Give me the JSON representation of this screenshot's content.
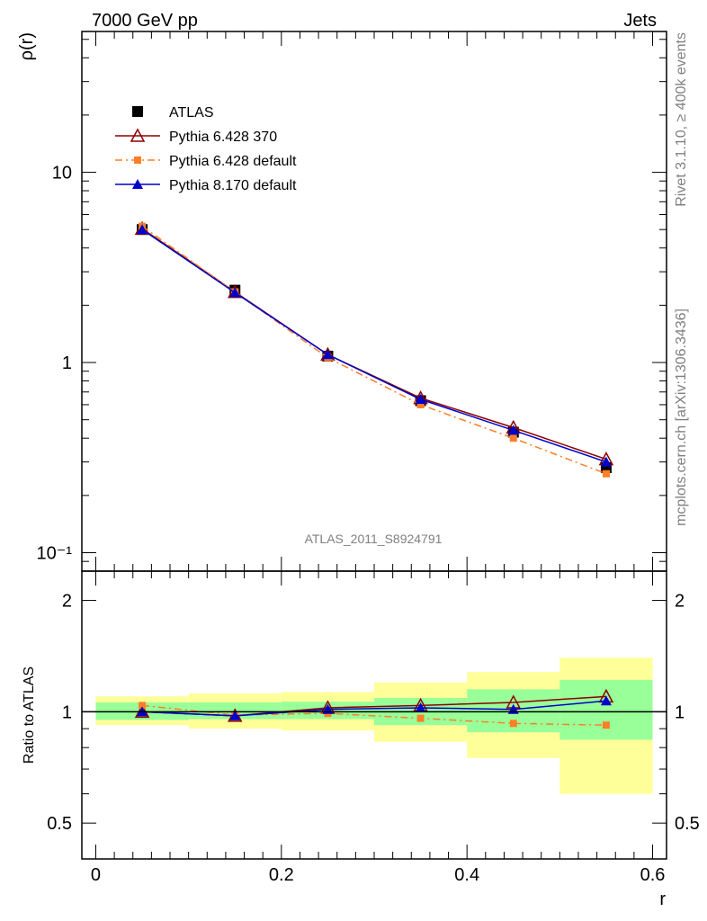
{
  "header": {
    "energy_label": "7000 GeV pp",
    "process_label": "Jets",
    "analysis_id": "ATLAS_2011_S8924791"
  },
  "side_labels": {
    "rivet": "Rivet 3.1.10, ≥ 400k events",
    "source": "mcplots.cern.ch [arXiv:1306.3436]"
  },
  "colors": {
    "data": "#000000",
    "pythia6_370": "#8b0000",
    "pythia6_default": "#ff7f27",
    "pythia8_default": "#0000cc",
    "band_inner": "#99ff99",
    "band_outer": "#ffff99"
  },
  "chart_data": [
    {
      "type": "line",
      "panel": "main",
      "ylabel": "ρ(r)",
      "y_scale": "log",
      "ylim": [
        0.08,
        55
      ],
      "xlim": [
        -0.015,
        0.615
      ],
      "y_ticks": [
        {
          "value": 0.1,
          "label": "10⁻¹"
        },
        {
          "value": 1,
          "label": "1"
        },
        {
          "value": 10,
          "label": "10"
        }
      ],
      "x": [
        0.05,
        0.15,
        0.25,
        0.35,
        0.45,
        0.55
      ],
      "series": [
        {
          "name": "ATLAS",
          "marker": "square",
          "values": [
            5.0,
            2.4,
            1.08,
            0.63,
            0.43,
            0.28
          ]
        },
        {
          "name": "Pythia 6.428 370",
          "marker": "open-triangle",
          "line": "solid",
          "values": [
            5.05,
            2.35,
            1.1,
            0.65,
            0.455,
            0.31
          ]
        },
        {
          "name": "Pythia 6.428 default",
          "marker": "small-square",
          "line": "dashdot",
          "values": [
            5.2,
            2.35,
            1.06,
            0.6,
            0.4,
            0.26
          ]
        },
        {
          "name": "Pythia 8.170 default",
          "marker": "filled-triangle",
          "line": "solid",
          "values": [
            5.0,
            2.33,
            1.1,
            0.64,
            0.44,
            0.3
          ]
        }
      ],
      "legend_position": "top-left"
    },
    {
      "type": "line",
      "panel": "ratio",
      "ylabel": "Ratio to ATLAS",
      "xlabel": "r",
      "y_scale": "log",
      "ylim": [
        0.4,
        2.4
      ],
      "xlim": [
        -0.015,
        0.615
      ],
      "y_ticks": [
        {
          "value": 0.5,
          "label": "0.5"
        },
        {
          "value": 1,
          "label": "1"
        },
        {
          "value": 2,
          "label": "2"
        }
      ],
      "x_ticks": [
        {
          "value": 0,
          "label": "0"
        },
        {
          "value": 0.2,
          "label": "0.2"
        },
        {
          "value": 0.4,
          "label": "0.4"
        },
        {
          "value": 0.6,
          "label": "0.6"
        }
      ],
      "bands": [
        {
          "x0": 0.0,
          "x1": 0.1,
          "inner": [
            0.95,
            1.06
          ],
          "outer": [
            0.92,
            1.1
          ]
        },
        {
          "x0": 0.1,
          "x1": 0.2,
          "inner": [
            0.955,
            1.06
          ],
          "outer": [
            0.9,
            1.12
          ]
        },
        {
          "x0": 0.2,
          "x1": 0.3,
          "inner": [
            0.955,
            1.065
          ],
          "outer": [
            0.89,
            1.13
          ]
        },
        {
          "x0": 0.3,
          "x1": 0.4,
          "inner": [
            0.92,
            1.09
          ],
          "outer": [
            0.83,
            1.2
          ]
        },
        {
          "x0": 0.4,
          "x1": 0.5,
          "inner": [
            0.88,
            1.15
          ],
          "outer": [
            0.75,
            1.28
          ]
        },
        {
          "x0": 0.5,
          "x1": 0.6,
          "inner": [
            0.84,
            1.22
          ],
          "outer": [
            0.6,
            1.4
          ]
        }
      ],
      "x": [
        0.05,
        0.15,
        0.25,
        0.35,
        0.45,
        0.55
      ],
      "series": [
        {
          "name": "Pythia 6.428 370",
          "values": [
            1.0,
            0.975,
            1.025,
            1.04,
            1.06,
            1.1
          ]
        },
        {
          "name": "Pythia 6.428 default",
          "values": [
            1.04,
            0.98,
            0.99,
            0.96,
            0.93,
            0.92
          ]
        },
        {
          "name": "Pythia 8.170 default",
          "values": [
            1.0,
            0.975,
            1.015,
            1.025,
            1.015,
            1.07
          ]
        }
      ]
    }
  ]
}
